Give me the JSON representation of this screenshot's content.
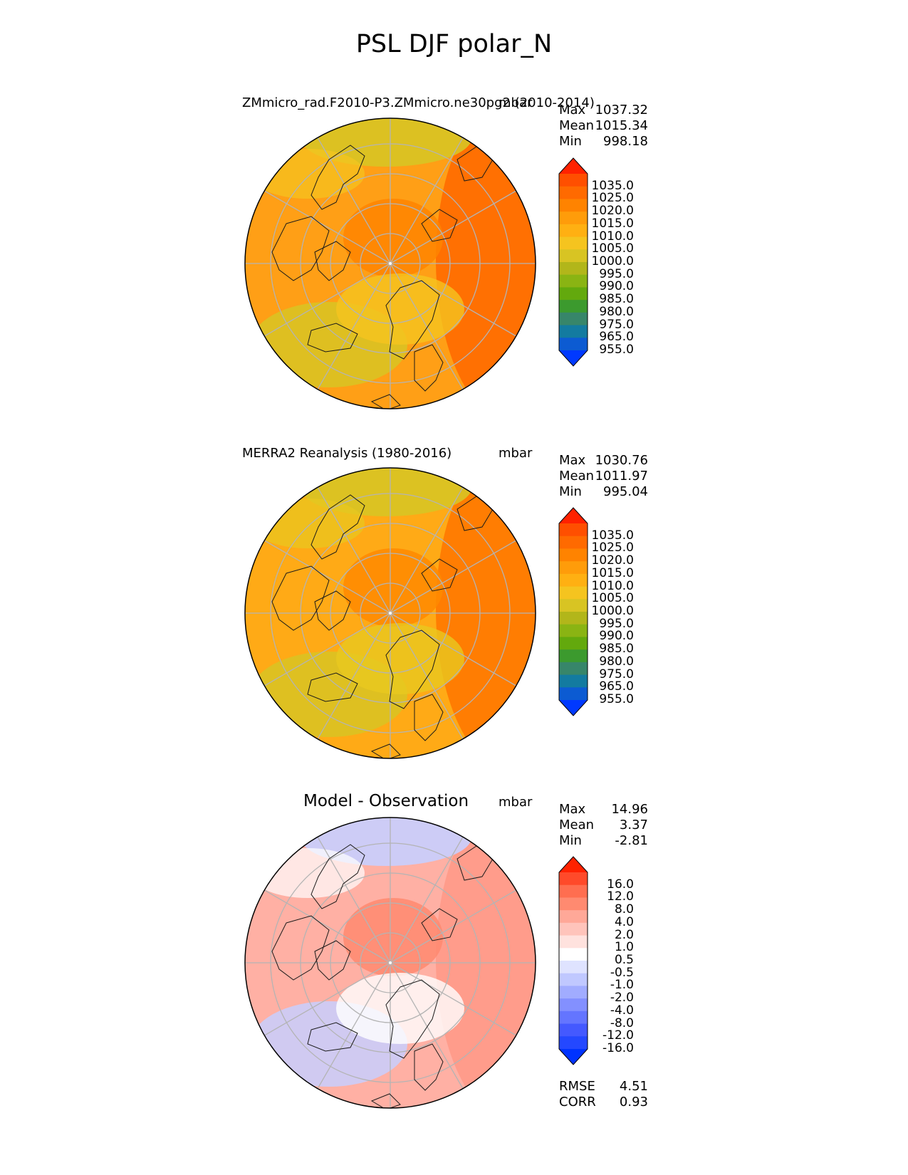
{
  "figure_title": "PSL DJF polar_N",
  "chart_data": [
    {
      "type": "heatmap",
      "projection": "north polar stereographic",
      "title": "ZMmicro_rad.F2010-P3.ZMmicro.ne30pg2 (2010-2014)",
      "units": "mbar",
      "stats": [
        {
          "label": "Max",
          "value": "1037.32"
        },
        {
          "label": "Mean",
          "value": "1015.34"
        },
        {
          "label": "Min",
          "value": "998.18"
        }
      ],
      "colorbar_ticks": [
        "1035.0",
        "1025.0",
        "1020.0",
        "1015.0",
        "1010.0",
        "1005.0",
        "1000.0",
        "995.0",
        "990.0",
        "985.0",
        "980.0",
        "975.0",
        "965.0",
        "955.0"
      ],
      "colorbar_colors": [
        "#ff2200",
        "#ff4f00",
        "#ff6a00",
        "#ff8300",
        "#ff9c0a",
        "#ffb012",
        "#f5c41f",
        "#d8c423",
        "#b2b61a",
        "#8ab413",
        "#63a90d",
        "#3c9a2e",
        "#37866a",
        "#137ba0",
        "#0c5bd2",
        "#0039ff"
      ],
      "field": {
        "base": "#ff9f16",
        "pole": "#ff8400",
        "east": "#ff6a00",
        "lowBlobs": [
          "#d8c423",
          "#f5c41f"
        ]
      }
    },
    {
      "type": "heatmap",
      "projection": "north polar stereographic",
      "title": "MERRA2 Reanalysis (1980-2016)",
      "units": "mbar",
      "stats": [
        {
          "label": "Max",
          "value": "1030.76"
        },
        {
          "label": "Mean",
          "value": "1011.97"
        },
        {
          "label": "Min",
          "value": "995.04"
        }
      ],
      "colorbar_ticks": [
        "1035.0",
        "1025.0",
        "1020.0",
        "1015.0",
        "1010.0",
        "1005.0",
        "1000.0",
        "995.0",
        "990.0",
        "985.0",
        "980.0",
        "975.0",
        "965.0",
        "955.0"
      ],
      "colorbar_colors": [
        "#ff2200",
        "#ff4f00",
        "#ff6a00",
        "#ff8300",
        "#ff9c0a",
        "#ffb012",
        "#f5c41f",
        "#d8c423",
        "#b2b61a",
        "#8ab413",
        "#63a90d",
        "#3c9a2e",
        "#37866a",
        "#137ba0",
        "#0c5bd2",
        "#0039ff"
      ],
      "field": {
        "base": "#ffaa16",
        "pole": "#ff8a00",
        "east": "#ff7800",
        "lowBlobs": [
          "#d8c423",
          "#e8c81f"
        ]
      }
    },
    {
      "type": "heatmap",
      "projection": "north polar stereographic",
      "title": "Model - Observation",
      "units": "mbar",
      "stats": [
        {
          "label": "Max",
          "value": "14.96"
        },
        {
          "label": "Mean",
          "value": "3.37"
        },
        {
          "label": "Min",
          "value": "-2.81"
        }
      ],
      "colorbar_ticks": [
        "16.0",
        "12.0",
        "8.0",
        "4.0",
        "2.0",
        "1.0",
        "0.5",
        "-0.5",
        "-1.0",
        "-2.0",
        "-4.0",
        "-8.0",
        "-12.0",
        "-16.0"
      ],
      "colorbar_colors": [
        "#ff2200",
        "#ff4a2a",
        "#ff6e50",
        "#ff8a70",
        "#ffa898",
        "#ffc4bb",
        "#ffe2de",
        "#ffffff",
        "#dfe3ff",
        "#c0c8ff",
        "#a1acff",
        "#8390ff",
        "#6475ff",
        "#4459ff",
        "#2448ff",
        "#0033ff"
      ],
      "field": {
        "base": "#ffb0a4",
        "pole": "#ff8a70",
        "east": "#ff9a88",
        "lowBlobs": [
          "#c8cfff",
          "#ffffff"
        ]
      },
      "metrics": [
        {
          "label": "RMSE",
          "value": "4.51"
        },
        {
          "label": "CORR",
          "value": "0.93"
        }
      ]
    }
  ]
}
